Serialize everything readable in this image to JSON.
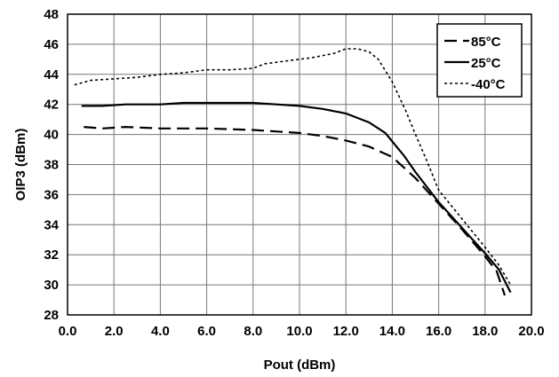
{
  "chart_data": {
    "type": "line",
    "title": "",
    "xlabel": "Pout (dBm)",
    "ylabel": "OIP3 (dBm)",
    "xlim": [
      0,
      20
    ],
    "ylim": [
      28,
      48
    ],
    "x_ticks": [
      "0.0",
      "2.0",
      "4.0",
      "6.0",
      "8.0",
      "10.0",
      "12.0",
      "14.0",
      "16.0",
      "18.0",
      "20.0"
    ],
    "y_ticks": [
      "28",
      "30",
      "32",
      "34",
      "36",
      "38",
      "40",
      "42",
      "44",
      "46",
      "48"
    ],
    "grid": true,
    "legend_position": "top-right",
    "series": [
      {
        "name": "85°C",
        "style": "dashed",
        "points": [
          [
            0.7,
            40.5
          ],
          [
            1.5,
            40.4
          ],
          [
            2.5,
            40.5
          ],
          [
            4.0,
            40.4
          ],
          [
            6.0,
            40.4
          ],
          [
            8.0,
            40.3
          ],
          [
            9.0,
            40.2
          ],
          [
            10.0,
            40.1
          ],
          [
            11.0,
            39.9
          ],
          [
            12.0,
            39.6
          ],
          [
            13.0,
            39.2
          ],
          [
            14.0,
            38.5
          ],
          [
            15.0,
            37.1
          ],
          [
            16.0,
            35.4
          ],
          [
            17.0,
            33.7
          ],
          [
            18.0,
            31.9
          ],
          [
            18.5,
            30.9
          ],
          [
            18.85,
            29.3
          ]
        ]
      },
      {
        "name": "25°C",
        "style": "solid",
        "points": [
          [
            0.6,
            41.9
          ],
          [
            1.5,
            41.9
          ],
          [
            2.5,
            42.0
          ],
          [
            4.0,
            42.0
          ],
          [
            5.0,
            42.1
          ],
          [
            6.0,
            42.1
          ],
          [
            8.0,
            42.1
          ],
          [
            9.0,
            42.0
          ],
          [
            10.0,
            41.9
          ],
          [
            11.0,
            41.7
          ],
          [
            12.0,
            41.4
          ],
          [
            13.0,
            40.8
          ],
          [
            13.7,
            40.1
          ],
          [
            14.5,
            38.6
          ],
          [
            15.0,
            37.5
          ],
          [
            16.0,
            35.5
          ],
          [
            17.0,
            33.8
          ],
          [
            18.0,
            32.1
          ],
          [
            18.6,
            31.0
          ],
          [
            19.1,
            29.5
          ]
        ]
      },
      {
        "name": "-40°C",
        "style": "dotted",
        "points": [
          [
            0.3,
            43.3
          ],
          [
            1.0,
            43.6
          ],
          [
            2.0,
            43.7
          ],
          [
            3.0,
            43.8
          ],
          [
            4.0,
            44.0
          ],
          [
            5.0,
            44.1
          ],
          [
            6.0,
            44.3
          ],
          [
            7.0,
            44.3
          ],
          [
            8.0,
            44.4
          ],
          [
            8.5,
            44.7
          ],
          [
            9.5,
            44.9
          ],
          [
            10.5,
            45.1
          ],
          [
            11.5,
            45.4
          ],
          [
            12.0,
            45.7
          ],
          [
            12.5,
            45.7
          ],
          [
            13.0,
            45.5
          ],
          [
            13.4,
            45.0
          ],
          [
            14.0,
            43.5
          ],
          [
            14.6,
            41.5
          ],
          [
            15.0,
            40.0
          ],
          [
            15.5,
            38.2
          ],
          [
            16.0,
            36.3
          ],
          [
            17.0,
            34.4
          ],
          [
            18.0,
            32.5
          ],
          [
            18.6,
            31.3
          ],
          [
            19.1,
            30.0
          ]
        ]
      }
    ]
  }
}
